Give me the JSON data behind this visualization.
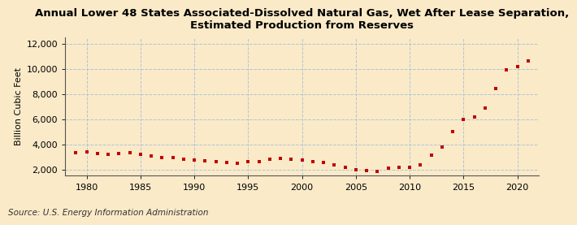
{
  "title": "Annual Lower 48 States Associated-Dissolved Natural Gas, Wet After Lease Separation,\nEstimated Production from Reserves",
  "ylabel": "Billion Cubic Feet",
  "source": "Source: U.S. Energy Information Administration",
  "background_color": "#faeac8",
  "plot_bg_color": "#faeac8",
  "dot_color": "#c00000",
  "years": [
    1979,
    1980,
    1981,
    1982,
    1983,
    1984,
    1985,
    1986,
    1987,
    1988,
    1989,
    1990,
    1991,
    1992,
    1993,
    1994,
    1995,
    1996,
    1997,
    1998,
    1999,
    2000,
    2001,
    2002,
    2003,
    2004,
    2005,
    2006,
    2007,
    2008,
    2009,
    2010,
    2011,
    2012,
    2013,
    2014,
    2015,
    2016,
    2017,
    2018,
    2019,
    2020,
    2021
  ],
  "values": [
    3350,
    3380,
    3280,
    3200,
    3270,
    3350,
    3200,
    3050,
    2950,
    2950,
    2850,
    2750,
    2700,
    2600,
    2550,
    2500,
    2600,
    2650,
    2800,
    2900,
    2850,
    2750,
    2650,
    2550,
    2400,
    2150,
    1980,
    1900,
    1870,
    2100,
    2200,
    2200,
    2400,
    3150,
    3800,
    5000,
    6000,
    6200,
    6900,
    8400,
    9900,
    10200,
    10600
  ],
  "ylim": [
    1500,
    12500
  ],
  "xlim": [
    1978,
    2022
  ],
  "yticks": [
    2000,
    4000,
    6000,
    8000,
    10000,
    12000
  ],
  "xticks": [
    1980,
    1985,
    1990,
    1995,
    2000,
    2005,
    2010,
    2015,
    2020
  ],
  "title_fontsize": 9.5,
  "axis_fontsize": 8,
  "tick_fontsize": 8,
  "source_fontsize": 7.5
}
